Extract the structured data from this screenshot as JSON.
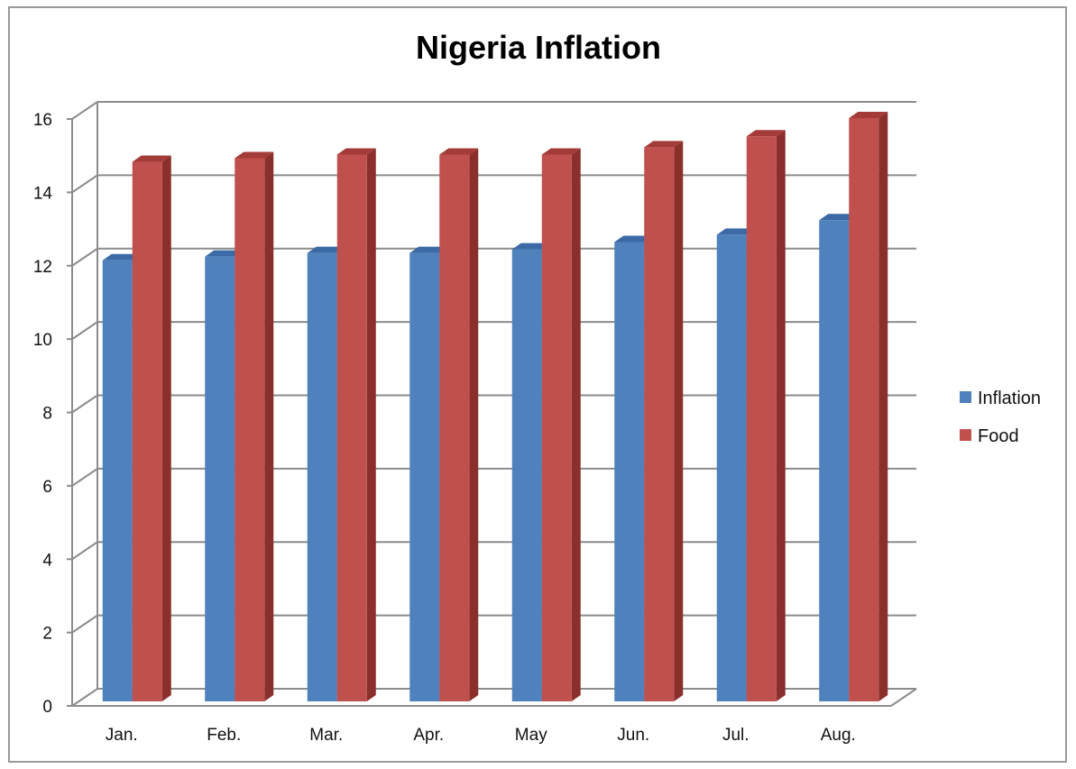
{
  "chart_data": {
    "type": "bar",
    "title": "Nigeria Inflation",
    "categories": [
      "Jan.",
      "Feb.",
      "Mar.",
      "Apr.",
      "May",
      "Jun.",
      "Jul.",
      "Aug."
    ],
    "series": [
      {
        "name": "Inflation",
        "color": "#4f81bd",
        "side_color": "#2f5f98",
        "top_color": "#3b6aa6",
        "values": [
          12.1,
          12.2,
          12.3,
          12.3,
          12.4,
          12.6,
          12.8,
          13.2
        ]
      },
      {
        "name": "Food",
        "color": "#c0504d",
        "side_color": "#8b2f2c",
        "top_color": "#a33b38",
        "values": [
          14.8,
          14.9,
          15.0,
          15.0,
          15.0,
          15.2,
          15.5,
          16.0
        ]
      }
    ],
    "ylim": [
      0,
      16
    ],
    "yticks": [
      0,
      2,
      4,
      6,
      8,
      10,
      12,
      14,
      16
    ],
    "grid": true,
    "legend": "right",
    "chart_style": "3d-clustered-column",
    "gridline_color": "#8c8c8c"
  }
}
